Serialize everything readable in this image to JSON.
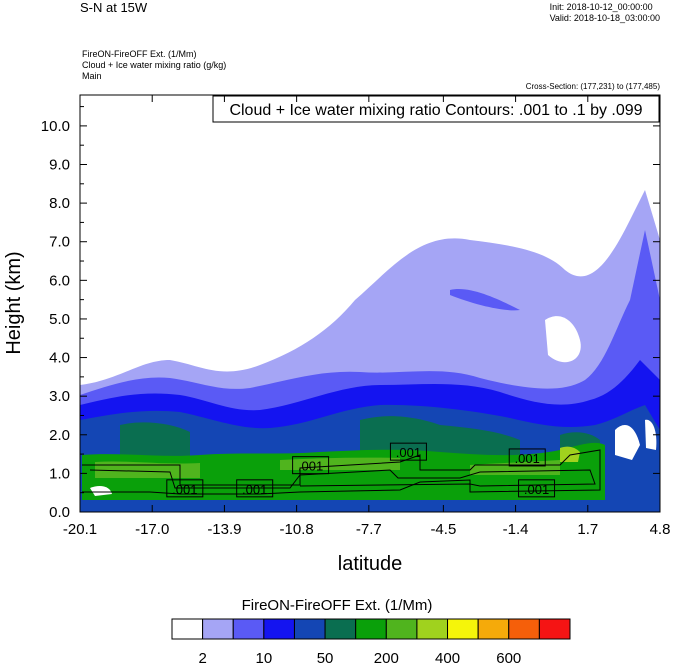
{
  "header": {
    "title": "S-N at 15W",
    "init": "Init: 2018-10-12_00:00:00",
    "valid": "Valid: 2018-10-18_03:00:00",
    "field_1": "FireON-FireOFF Ext.   (1/Mm)",
    "field_2": "Cloud + Ice water mixing ratio   (g/kg)",
    "field_3": "Main",
    "cross_section": "Cross-Section: (177,231) to (177,485)"
  },
  "chart_data": {
    "type": "heatmap",
    "title": "S-N at 15W",
    "contour_info": "Cloud + Ice water mixing ratio Contours: .001 to .1 by .099",
    "xlabel": "latitude",
    "ylabel": "Height (km)",
    "xlim": [
      -20.1,
      4.8
    ],
    "ylim": [
      0,
      10.8
    ],
    "x_ticks": [
      "-20.1",
      "-17.0",
      "-13.9",
      "-10.8",
      "-7.7",
      "-4.5",
      "-1.4",
      "1.7",
      "4.8"
    ],
    "x_tick_values": [
      -20.1,
      -17.0,
      -13.9,
      -10.8,
      -7.7,
      -4.5,
      -1.4,
      1.7,
      4.8
    ],
    "y_ticks": [
      "0.0",
      "1.0",
      "2.0",
      "3.0",
      "4.0",
      "5.0",
      "6.0",
      "7.0",
      "8.0",
      "9.0",
      "10.0"
    ],
    "y_tick_values": [
      0,
      1,
      2,
      3,
      4,
      5,
      6,
      7,
      8,
      9,
      10
    ],
    "contour_labels": [
      {
        "text": ".001",
        "x": -15.6,
        "y": 0.6
      },
      {
        "text": ".001",
        "x": -12.6,
        "y": 0.6
      },
      {
        "text": ".001",
        "x": -10.2,
        "y": 1.2
      },
      {
        "text": ".001",
        "x": -6.0,
        "y": 1.55
      },
      {
        "text": ".001",
        "x": -0.9,
        "y": 1.4
      },
      {
        "text": ".001",
        "x": -0.5,
        "y": 0.6
      }
    ],
    "colorbar": {
      "title": "FireON-FireOFF Ext.  (1/Mm)",
      "colors": [
        "#ffffff",
        "#a5a5f5",
        "#5a5af5",
        "#1414f0",
        "#1446b4",
        "#0a6e50",
        "#0aa00a",
        "#50b41e",
        "#a0d21e",
        "#f5f50a",
        "#f5aa0a",
        "#f55f0a",
        "#f51414"
      ],
      "labels": [
        "2",
        "10",
        "50",
        "200",
        "400",
        "600"
      ],
      "label_boundaries": [
        1,
        3,
        5,
        7,
        9,
        11
      ]
    }
  }
}
